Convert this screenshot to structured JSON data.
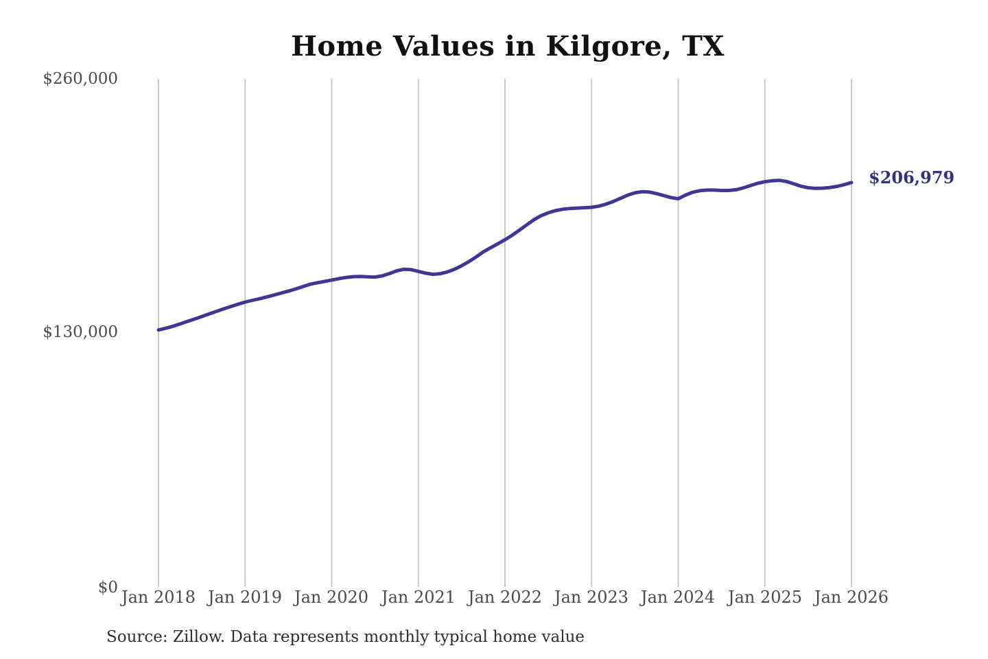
{
  "title": "Home Values in Kilgore, TX",
  "end_label": "$206,979",
  "source_note": "Source: Zillow. Data represents monthly typical home value",
  "colors": {
    "background": "#ffffff",
    "line": "#3e3793",
    "grid": "#c8c8c8",
    "title_text": "#111111",
    "axis_text": "#4a4a4a",
    "end_label_text": "#32317f",
    "source_text": "#2e2e2e"
  },
  "chart_data": {
    "type": "line",
    "title": "Home Values in Kilgore, TX",
    "xlabel": "",
    "ylabel": "",
    "ylim": [
      0,
      260000
    ],
    "yticks": [
      0,
      130000,
      260000
    ],
    "y_tick_labels": [
      "$0",
      "$130,000",
      "$260,000"
    ],
    "x_tick_labels": [
      "Jan 2018",
      "Jan 2019",
      "Jan 2020",
      "Jan 2021",
      "Jan 2022",
      "Jan 2023",
      "Jan 2024",
      "Jan 2025",
      "Jan 2026"
    ],
    "x_range": [
      "2018-01",
      "2026-01"
    ],
    "x_interval": "monthly",
    "grid": "vertical-only",
    "legend": "none",
    "end_value": 206979,
    "series": [
      {
        "name": "Typical home value",
        "values": [
          131500,
          132400,
          133400,
          134600,
          135900,
          137100,
          138400,
          139700,
          141000,
          142300,
          143500,
          144700,
          145800,
          146700,
          147500,
          148400,
          149400,
          150400,
          151400,
          152500,
          153700,
          154900,
          155700,
          156400,
          157100,
          157800,
          158400,
          158800,
          158900,
          158700,
          158600,
          159200,
          160400,
          161800,
          162600,
          162400,
          161500,
          160600,
          160000,
          160300,
          161200,
          162600,
          164400,
          166500,
          168900,
          171500,
          173600,
          175600,
          177700,
          180000,
          182600,
          185300,
          187900,
          190000,
          191500,
          192600,
          193300,
          193700,
          193900,
          194100,
          194300,
          194900,
          195900,
          197300,
          198900,
          200500,
          201700,
          202300,
          202100,
          201300,
          200300,
          199300,
          198700,
          200500,
          202000,
          202800,
          203100,
          203100,
          202900,
          202900,
          203300,
          204200,
          205400,
          206600,
          207400,
          207900,
          208100,
          207500,
          206300,
          205100,
          204300,
          204000,
          204100,
          204400,
          205000,
          205900,
          206979
        ]
      }
    ]
  }
}
